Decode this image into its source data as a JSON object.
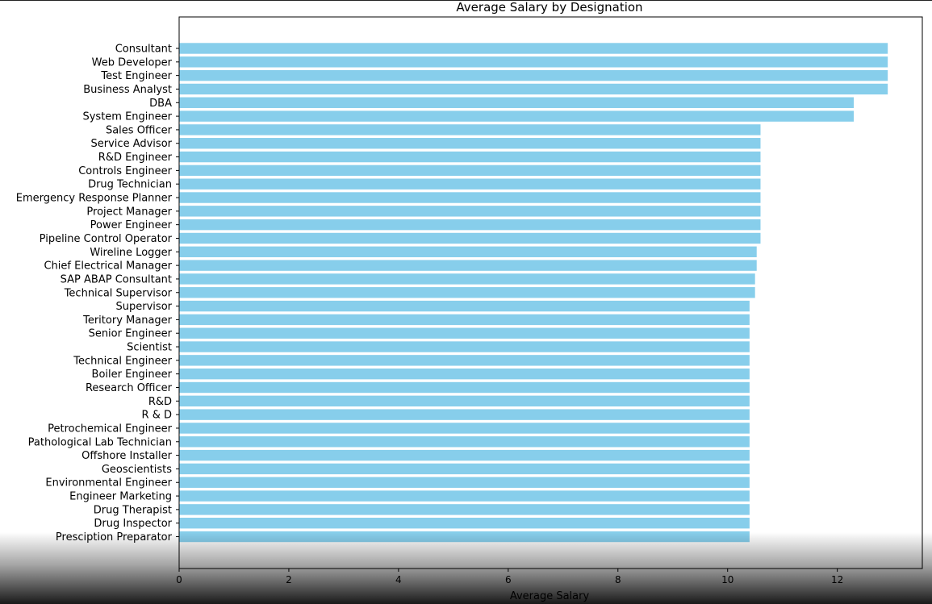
{
  "chart_data": {
    "type": "bar",
    "orientation": "horizontal",
    "title": "Average Salary by Designation",
    "xlabel": "Average Salary",
    "ylabel": "",
    "xlim": [
      0,
      13.55
    ],
    "xticks": [
      0,
      2,
      4,
      6,
      8,
      10,
      12
    ],
    "grid": false,
    "bar_color": "#87CEEB",
    "categories": [
      "Consultant",
      "Web Developer",
      "Test Engineer",
      "Business Analyst",
      "DBA",
      "System Engineer",
      "Sales Officer",
      "Service Advisor",
      "R&D Engineer",
      "Controls Engineer",
      "Drug Technician",
      "Emergency Response Planner",
      "Project Manager",
      "Power Engineer",
      "Pipeline Control Operator",
      "Wireline Logger",
      "Chief Electrical Manager",
      "SAP ABAP Consultant",
      "Technical Supervisor",
      "Supervisor",
      "Teritory Manager",
      "Senior Engineer",
      "Scientist",
      "Technical Engineer",
      "Boiler Engineer",
      "Research Officer",
      "R&D",
      "R & D",
      "Petrochemical Engineer",
      "Pathological Lab Technician",
      "Offshore Installer",
      "Geoscientists",
      "Environmental Engineer",
      "Engineer Marketing",
      "Drug Therapist",
      "Drug Inspector",
      "Presciption Preparator"
    ],
    "values": [
      12.92,
      12.92,
      12.92,
      12.92,
      12.3,
      12.3,
      10.6,
      10.6,
      10.6,
      10.6,
      10.6,
      10.6,
      10.6,
      10.6,
      10.6,
      10.53,
      10.53,
      10.5,
      10.5,
      10.4,
      10.4,
      10.4,
      10.4,
      10.4,
      10.4,
      10.4,
      10.4,
      10.4,
      10.4,
      10.4,
      10.4,
      10.4,
      10.4,
      10.4,
      10.4,
      10.4,
      10.4
    ]
  }
}
